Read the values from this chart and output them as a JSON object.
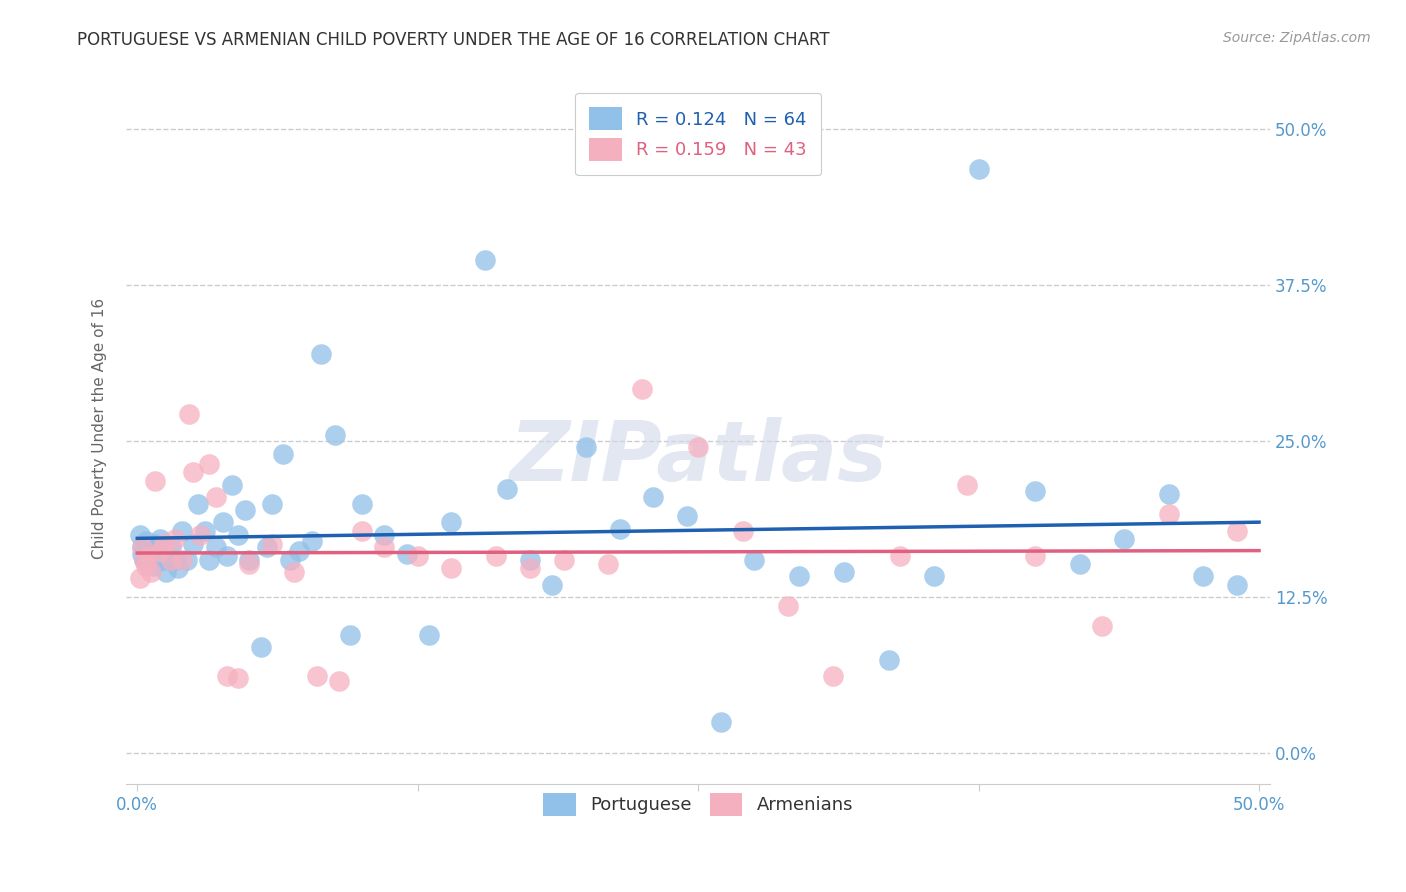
{
  "title": "PORTUGUESE VS ARMENIAN CHILD POVERTY UNDER THE AGE OF 16 CORRELATION CHART",
  "source": "Source: ZipAtlas.com",
  "ylabel": "Child Poverty Under the Age of 16",
  "ytick_vals": [
    0.0,
    0.125,
    0.25,
    0.375,
    0.5
  ],
  "xtick_vals": [
    0.0,
    0.125,
    0.25,
    0.375,
    0.5
  ],
  "xlim": [
    -0.005,
    0.505
  ],
  "ylim": [
    -0.025,
    0.545
  ],
  "portuguese_color": "#91c0e8",
  "armenian_color": "#f5b0c0",
  "portuguese_line_color": "#2060b0",
  "armenian_line_color": "#e06080",
  "background_color": "#ffffff",
  "grid_color": "#cccccc",
  "title_color": "#333333",
  "axis_tick_color": "#5599cc",
  "portuguese_R": 0.124,
  "portuguese_N": 64,
  "armenian_R": 0.159,
  "armenian_N": 43,
  "watermark_text": "ZIPatlas",
  "legend_bottom": [
    "Portuguese",
    "Armenians"
  ],
  "portuguese_x": [
    0.001,
    0.002,
    0.002,
    0.003,
    0.004,
    0.005,
    0.006,
    0.007,
    0.008,
    0.01,
    0.012,
    0.013,
    0.015,
    0.017,
    0.018,
    0.02,
    0.022,
    0.025,
    0.027,
    0.03,
    0.032,
    0.035,
    0.038,
    0.04,
    0.042,
    0.045,
    0.048,
    0.05,
    0.055,
    0.058,
    0.06,
    0.065,
    0.068,
    0.072,
    0.078,
    0.082,
    0.088,
    0.095,
    0.1,
    0.11,
    0.12,
    0.13,
    0.14,
    0.155,
    0.165,
    0.175,
    0.185,
    0.2,
    0.215,
    0.23,
    0.245,
    0.26,
    0.275,
    0.295,
    0.315,
    0.335,
    0.355,
    0.375,
    0.4,
    0.42,
    0.44,
    0.46,
    0.475,
    0.49
  ],
  "portuguese_y": [
    0.175,
    0.16,
    0.165,
    0.155,
    0.17,
    0.158,
    0.162,
    0.15,
    0.168,
    0.172,
    0.155,
    0.145,
    0.165,
    0.155,
    0.148,
    0.178,
    0.155,
    0.168,
    0.2,
    0.178,
    0.155,
    0.165,
    0.185,
    0.158,
    0.215,
    0.175,
    0.195,
    0.155,
    0.085,
    0.165,
    0.2,
    0.24,
    0.155,
    0.162,
    0.17,
    0.32,
    0.255,
    0.095,
    0.2,
    0.175,
    0.16,
    0.095,
    0.185,
    0.395,
    0.212,
    0.155,
    0.135,
    0.245,
    0.18,
    0.205,
    0.19,
    0.025,
    0.155,
    0.142,
    0.145,
    0.075,
    0.142,
    0.468,
    0.21,
    0.152,
    0.172,
    0.208,
    0.142,
    0.135
  ],
  "armenian_x": [
    0.001,
    0.002,
    0.003,
    0.004,
    0.005,
    0.006,
    0.008,
    0.01,
    0.012,
    0.015,
    0.017,
    0.02,
    0.023,
    0.025,
    0.028,
    0.032,
    0.035,
    0.04,
    0.045,
    0.05,
    0.06,
    0.07,
    0.08,
    0.09,
    0.1,
    0.11,
    0.125,
    0.14,
    0.16,
    0.175,
    0.19,
    0.21,
    0.225,
    0.25,
    0.27,
    0.29,
    0.31,
    0.34,
    0.37,
    0.4,
    0.43,
    0.46,
    0.49
  ],
  "armenian_y": [
    0.14,
    0.165,
    0.155,
    0.15,
    0.158,
    0.145,
    0.218,
    0.162,
    0.168,
    0.155,
    0.172,
    0.155,
    0.272,
    0.225,
    0.175,
    0.232,
    0.205,
    0.062,
    0.06,
    0.152,
    0.168,
    0.145,
    0.062,
    0.058,
    0.178,
    0.165,
    0.158,
    0.148,
    0.158,
    0.148,
    0.155,
    0.152,
    0.292,
    0.245,
    0.178,
    0.118,
    0.062,
    0.158,
    0.215,
    0.158,
    0.102,
    0.192,
    0.178
  ]
}
